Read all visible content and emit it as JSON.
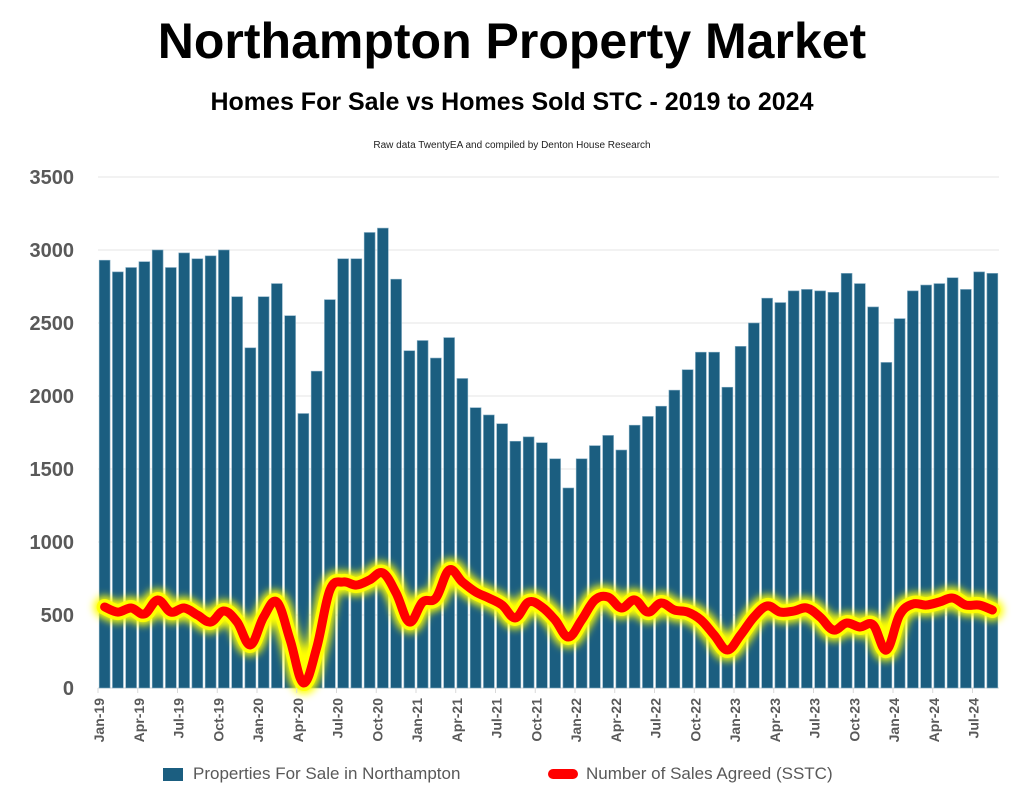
{
  "header": {
    "title": "Northampton Property Market",
    "subtitle": "Homes For Sale vs Homes Sold STC - 2019 to 2024",
    "source": "Raw data TwentyEA and compiled by Denton House Research"
  },
  "colors": {
    "bar": "#1b5e80",
    "line": "#ff0000",
    "glow": "#ffff00",
    "grid": "#eeeeee",
    "axis_text": "#595959"
  },
  "chart_data": {
    "type": "bar",
    "title": "Northampton Property Market",
    "xlabel": "",
    "ylabel": "",
    "ylim": [
      0,
      3500
    ],
    "yticks": [
      0,
      500,
      1000,
      1500,
      2000,
      2500,
      3000,
      3500
    ],
    "grid": true,
    "legend_position": "bottom",
    "categories": [
      "Jan-19",
      "Feb-19",
      "Mar-19",
      "Apr-19",
      "May-19",
      "Jun-19",
      "Jul-19",
      "Aug-19",
      "Sep-19",
      "Oct-19",
      "Nov-19",
      "Dec-19",
      "Jan-20",
      "Feb-20",
      "Mar-20",
      "Apr-20",
      "May-20",
      "Jun-20",
      "Jul-20",
      "Aug-20",
      "Sep-20",
      "Oct-20",
      "Nov-20",
      "Dec-20",
      "Jan-21",
      "Feb-21",
      "Mar-21",
      "Apr-21",
      "May-21",
      "Jun-21",
      "Jul-21",
      "Aug-21",
      "Sep-21",
      "Oct-21",
      "Nov-21",
      "Dec-21",
      "Jan-22",
      "Feb-22",
      "Mar-22",
      "Apr-22",
      "May-22",
      "Jun-22",
      "Jul-22",
      "Aug-22",
      "Sep-22",
      "Oct-22",
      "Nov-22",
      "Dec-22",
      "Jan-23",
      "Feb-23",
      "Mar-23",
      "Apr-23",
      "May-23",
      "Jun-23",
      "Jul-23",
      "Aug-23",
      "Sep-23",
      "Oct-23",
      "Nov-23",
      "Dec-23",
      "Jan-24",
      "Feb-24",
      "Mar-24",
      "Apr-24",
      "May-24",
      "Jun-24",
      "Jul-24",
      "Aug-24"
    ],
    "tick_labels": [
      "Jan-19",
      "Apr-19",
      "Jul-19",
      "Oct-19",
      "Jan-20",
      "Apr-20",
      "Jul-20",
      "Oct-20",
      "Jan-21",
      "Apr-21",
      "Jul-21",
      "Oct-21",
      "Jan-22",
      "Apr-22",
      "Jul-22",
      "Oct-22",
      "Jan-23",
      "Apr-23",
      "Jul-23",
      "Oct-23",
      "Jan-24",
      "Apr-24",
      "Jul-24"
    ],
    "series": [
      {
        "name": "Properties For Sale in Northampton",
        "type": "bar",
        "values": [
          2930,
          2850,
          2880,
          2920,
          3000,
          2880,
          2980,
          2940,
          2960,
          3000,
          2680,
          2330,
          2680,
          2770,
          2550,
          1880,
          2170,
          2660,
          2940,
          2940,
          3120,
          3150,
          2800,
          2310,
          2380,
          2260,
          2400,
          2120,
          1920,
          1870,
          1810,
          1690,
          1720,
          1680,
          1570,
          1370,
          1570,
          1660,
          1730,
          1630,
          1800,
          1860,
          1930,
          2040,
          2180,
          2300,
          2300,
          2060,
          2340,
          2500,
          2670,
          2640,
          2720,
          2730,
          2720,
          2710,
          2840,
          2770,
          2610,
          2230,
          2530,
          2720,
          2760,
          2770,
          2810,
          2730,
          2850,
          2840
        ]
      },
      {
        "name": "Number of Sales Agreed (SSTC)",
        "type": "line",
        "values": [
          555,
          520,
          548,
          507,
          603,
          520,
          548,
          500,
          452,
          527,
          452,
          295,
          486,
          589,
          329,
          35,
          274,
          670,
          726,
          705,
          740,
          788,
          650,
          452,
          589,
          616,
          808,
          726,
          658,
          616,
          568,
          480,
          589,
          555,
          466,
          349,
          466,
          603,
          623,
          548,
          603,
          520,
          582,
          534,
          520,
          466,
          363,
          260,
          363,
          486,
          562,
          520,
          527,
          548,
          486,
          397,
          445,
          418,
          432,
          260,
          500,
          575,
          568,
          589,
          616,
          568,
          568,
          534
        ]
      }
    ]
  }
}
